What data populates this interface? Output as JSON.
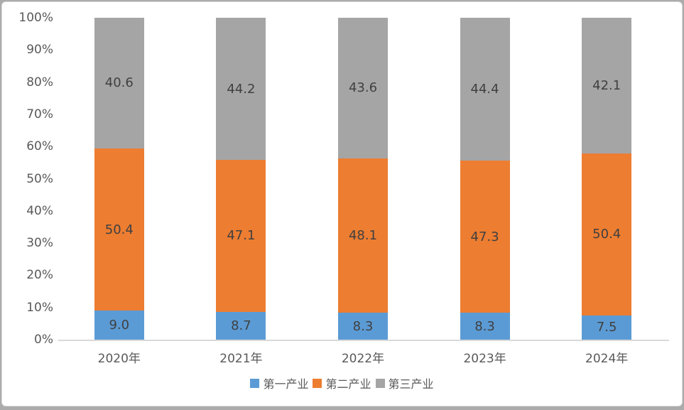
{
  "chart_data": {
    "type": "bar",
    "variant": "stacked-100-percent-column",
    "title": "",
    "xlabel": "",
    "ylabel": "",
    "grid": false,
    "categories": [
      "2020年",
      "2021年",
      "2022年",
      "2023年",
      "2024年"
    ],
    "series": [
      {
        "name": "第一产业",
        "color": "#5B9BD5",
        "values": [
          9.0,
          8.7,
          8.3,
          8.3,
          7.5
        ],
        "labels": [
          "9.0",
          "8.7",
          "8.3",
          "8.3",
          "7.5"
        ]
      },
      {
        "name": "第二产业",
        "color": "#ED7D31",
        "values": [
          50.4,
          47.1,
          48.1,
          47.3,
          50.4
        ],
        "labels": [
          "50.4",
          "47.1",
          "48.1",
          "47.3",
          "50.4"
        ]
      },
      {
        "name": "第三产业",
        "color": "#A5A5A5",
        "values": [
          40.6,
          44.2,
          43.6,
          44.4,
          42.1
        ],
        "labels": [
          "40.6",
          "44.2",
          "43.6",
          "44.4",
          "42.1"
        ]
      }
    ],
    "y_axis": {
      "min": 0,
      "max": 100,
      "tick_step": 10,
      "tick_labels": [
        "0%",
        "10%",
        "20%",
        "30%",
        "40%",
        "50%",
        "60%",
        "70%",
        "80%",
        "90%",
        "100%"
      ]
    },
    "legend": {
      "position": "bottom-center",
      "entries": [
        "第一产业",
        "第二产业",
        "第三产业"
      ]
    }
  },
  "colors": {
    "background": "#FFFFFF",
    "frame_edge": "#ABABAB",
    "panel_border": "#D9D9D9",
    "axis_line": "#D9D9D9",
    "tick_text": "#595959",
    "data_label_text": "#404040",
    "series_blue": "#5B9BD5",
    "series_orange": "#ED7D31",
    "series_gray": "#A5A5A5"
  }
}
